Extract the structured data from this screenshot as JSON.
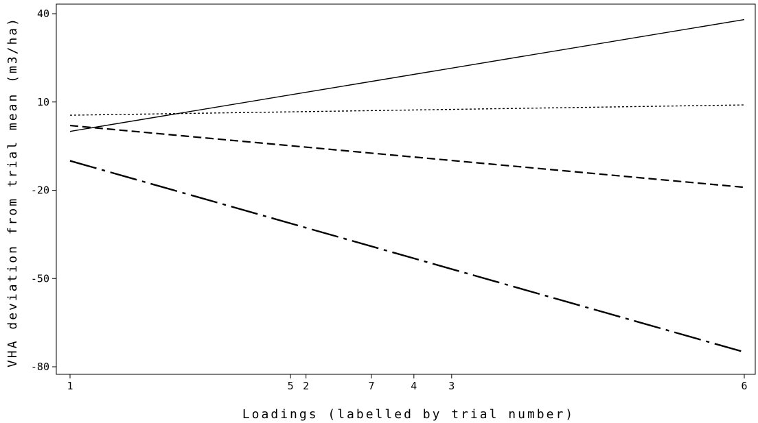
{
  "chart_data": {
    "type": "line",
    "title": "",
    "xlabel": "Loadings (labelled by trial number)",
    "ylabel": "VHA deviation from trial mean (m3/ha)",
    "xlim": [
      0,
      1
    ],
    "ylim": [
      -80,
      40
    ],
    "x_tick_positions": [
      0,
      0.327,
      0.35,
      0.447,
      0.51,
      0.566,
      1
    ],
    "x_tick_labels": [
      "1",
      "5",
      "2",
      "7",
      "4",
      "3",
      "6"
    ],
    "y_ticks": [
      40,
      10,
      -20,
      -50,
      -80
    ],
    "y_tick_labels": [
      "40",
      "10",
      "-20",
      "-50",
      "-80"
    ],
    "grid": false,
    "legend": "none",
    "series": [
      {
        "style": "solid",
        "color": "#000000",
        "x": [
          0,
          1
        ],
        "y": [
          0,
          38
        ]
      },
      {
        "style": "dotted",
        "color": "#000000",
        "x": [
          0,
          1
        ],
        "y": [
          5.5,
          9
        ]
      },
      {
        "style": "dashed",
        "color": "#000000",
        "x": [
          0,
          1
        ],
        "y": [
          2,
          -19
        ]
      },
      {
        "style": "dash-dot",
        "color": "#000000",
        "x": [
          0,
          1
        ],
        "y": [
          -10,
          -75
        ]
      }
    ]
  }
}
